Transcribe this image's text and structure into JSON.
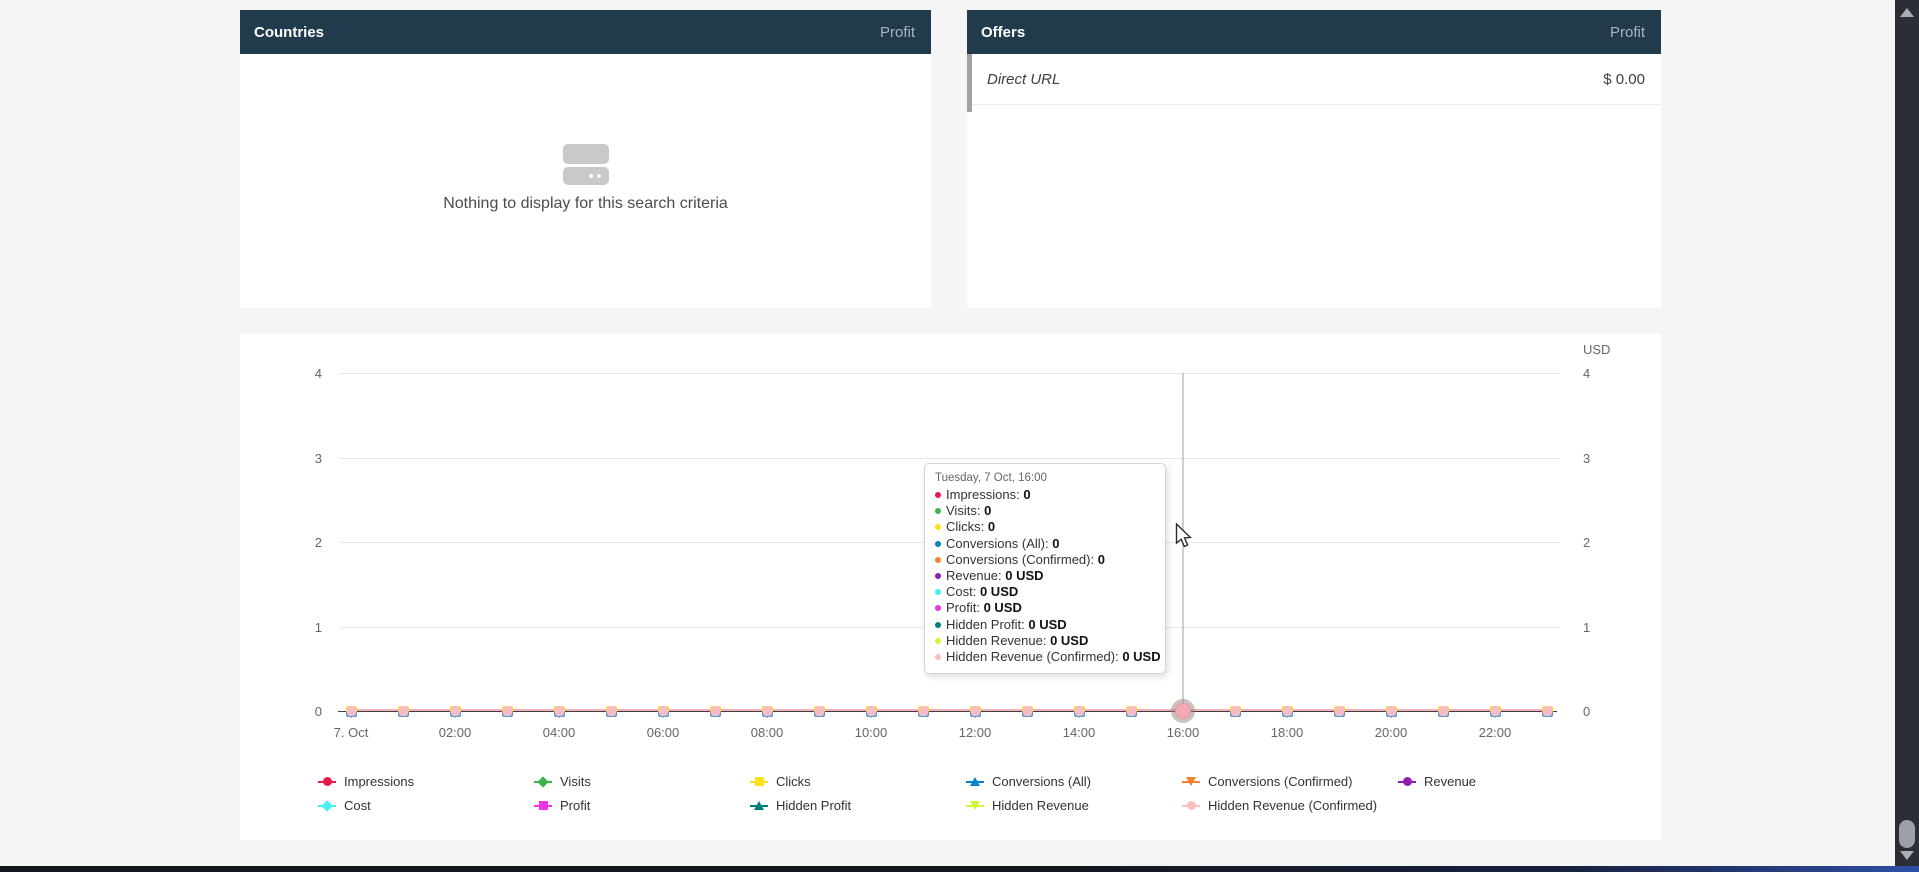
{
  "theme": {
    "page_bg": "#f5f5f5",
    "panel_header_bg": "#213b4d",
    "grid_color": "#e6e6e6",
    "footer_bar_colors": [
      "#14161d",
      "#2e4fa5"
    ]
  },
  "countries_panel": {
    "title": "Countries",
    "metric_label": "Profit",
    "empty_state": {
      "icon": "card-reader-icon",
      "message": "Nothing to display for this search criteria"
    }
  },
  "offers_panel": {
    "title": "Offers",
    "metric_label": "Profit",
    "rows": [
      {
        "label": "Direct URL",
        "value": "$ 0.00"
      }
    ]
  },
  "chart_data": {
    "type": "line",
    "title": "",
    "currency_axis_label": "USD",
    "x_tick_labels": [
      "7. Oct",
      "02:00",
      "04:00",
      "06:00",
      "08:00",
      "10:00",
      "12:00",
      "14:00",
      "16:00",
      "18:00",
      "20:00",
      "22:00"
    ],
    "x_points": 24,
    "y_ticks_left": [
      4,
      3,
      2,
      1,
      0
    ],
    "y_ticks_right": [
      4,
      3,
      2,
      1,
      0
    ],
    "ylim": [
      0,
      4
    ],
    "grid": true,
    "legend_position": "bottom",
    "hovered_point_index": 16,
    "series": [
      {
        "name": "Impressions",
        "color": "#e6194b",
        "marker": "circle",
        "values": [
          0,
          0,
          0,
          0,
          0,
          0,
          0,
          0,
          0,
          0,
          0,
          0,
          0,
          0,
          0,
          0,
          0,
          0,
          0,
          0,
          0,
          0,
          0,
          0
        ]
      },
      {
        "name": "Visits",
        "color": "#3cb44b",
        "marker": "diamond",
        "values": [
          0,
          0,
          0,
          0,
          0,
          0,
          0,
          0,
          0,
          0,
          0,
          0,
          0,
          0,
          0,
          0,
          0,
          0,
          0,
          0,
          0,
          0,
          0,
          0
        ]
      },
      {
        "name": "Clicks",
        "color": "#ffe119",
        "marker": "square",
        "values": [
          0,
          0,
          0,
          0,
          0,
          0,
          0,
          0,
          0,
          0,
          0,
          0,
          0,
          0,
          0,
          0,
          0,
          0,
          0,
          0,
          0,
          0,
          0,
          0
        ]
      },
      {
        "name": "Conversions (All)",
        "color": "#0082c8",
        "marker": "triangle-up",
        "values": [
          0,
          0,
          0,
          0,
          0,
          0,
          0,
          0,
          0,
          0,
          0,
          0,
          0,
          0,
          0,
          0,
          0,
          0,
          0,
          0,
          0,
          0,
          0,
          0
        ]
      },
      {
        "name": "Conversions (Confirmed)",
        "color": "#f58231",
        "marker": "triangle-down",
        "values": [
          0,
          0,
          0,
          0,
          0,
          0,
          0,
          0,
          0,
          0,
          0,
          0,
          0,
          0,
          0,
          0,
          0,
          0,
          0,
          0,
          0,
          0,
          0,
          0
        ]
      },
      {
        "name": "Revenue",
        "color": "#911eb4",
        "marker": "circle",
        "values": [
          0,
          0,
          0,
          0,
          0,
          0,
          0,
          0,
          0,
          0,
          0,
          0,
          0,
          0,
          0,
          0,
          0,
          0,
          0,
          0,
          0,
          0,
          0,
          0
        ]
      },
      {
        "name": "Cost",
        "color": "#46f0f0",
        "marker": "diamond",
        "values": [
          0,
          0,
          0,
          0,
          0,
          0,
          0,
          0,
          0,
          0,
          0,
          0,
          0,
          0,
          0,
          0,
          0,
          0,
          0,
          0,
          0,
          0,
          0,
          0
        ]
      },
      {
        "name": "Profit",
        "color": "#f032e6",
        "marker": "square",
        "values": [
          0,
          0,
          0,
          0,
          0,
          0,
          0,
          0,
          0,
          0,
          0,
          0,
          0,
          0,
          0,
          0,
          0,
          0,
          0,
          0,
          0,
          0,
          0,
          0
        ]
      },
      {
        "name": "Hidden Profit",
        "color": "#008080",
        "marker": "triangle-up",
        "values": [
          0,
          0,
          0,
          0,
          0,
          0,
          0,
          0,
          0,
          0,
          0,
          0,
          0,
          0,
          0,
          0,
          0,
          0,
          0,
          0,
          0,
          0,
          0,
          0
        ]
      },
      {
        "name": "Hidden Revenue",
        "color": "#d2f53c",
        "marker": "triangle-down",
        "values": [
          0,
          0,
          0,
          0,
          0,
          0,
          0,
          0,
          0,
          0,
          0,
          0,
          0,
          0,
          0,
          0,
          0,
          0,
          0,
          0,
          0,
          0,
          0,
          0
        ]
      },
      {
        "name": "Hidden Revenue (Confirmed)",
        "color": "#fabebe",
        "marker": "circle",
        "values": [
          0,
          0,
          0,
          0,
          0,
          0,
          0,
          0,
          0,
          0,
          0,
          0,
          0,
          0,
          0,
          0,
          0,
          0,
          0,
          0,
          0,
          0,
          0,
          0
        ]
      }
    ]
  },
  "tooltip": {
    "title": "Tuesday, 7 Oct, 16:00",
    "items": [
      {
        "label": "Impressions",
        "value": "0"
      },
      {
        "label": "Visits",
        "value": "0"
      },
      {
        "label": "Clicks",
        "value": "0"
      },
      {
        "label": "Conversions (All)",
        "value": "0"
      },
      {
        "label": "Conversions (Confirmed)",
        "value": "0"
      },
      {
        "label": "Revenue",
        "value": "0 USD"
      },
      {
        "label": "Cost",
        "value": "0 USD"
      },
      {
        "label": "Profit",
        "value": "0 USD"
      },
      {
        "label": "Hidden Profit",
        "value": "0 USD"
      },
      {
        "label": "Hidden Revenue",
        "value": "0 USD"
      },
      {
        "label": "Hidden Revenue (Confirmed)",
        "value": "0 USD"
      }
    ]
  }
}
